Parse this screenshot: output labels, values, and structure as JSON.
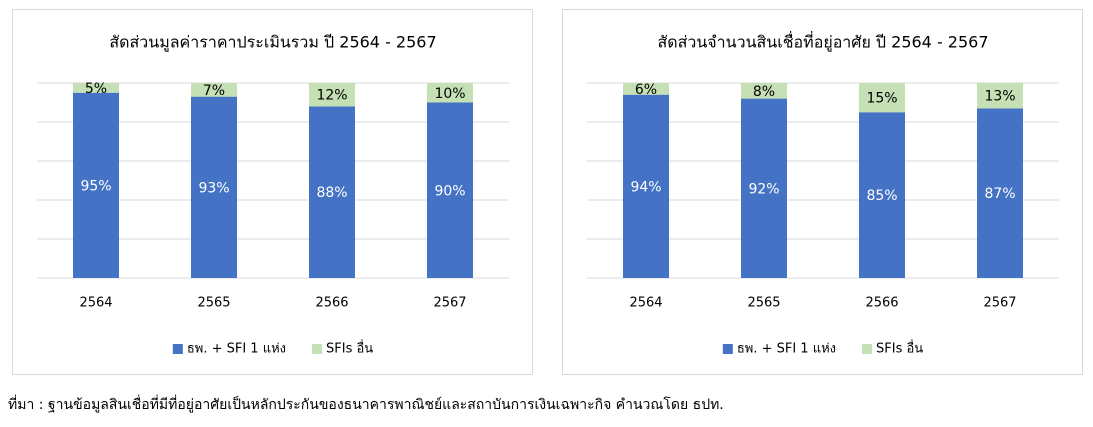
{
  "chart_data": [
    {
      "type": "bar",
      "stacked": true,
      "title": "สัดส่วนมูลค่าราคาประเมินรวม ปี 2564 - 2567",
      "categories": [
        "2564",
        "2565",
        "2566",
        "2567"
      ],
      "series": [
        {
          "name": "ธพ. + SFI 1 แห่ง",
          "color": "#4472c4",
          "values": [
            95,
            93,
            88,
            90
          ],
          "value_labels": [
            "95%",
            "93%",
            "88%",
            "90%"
          ]
        },
        {
          "name": "SFIs อื่น",
          "color": "#c5e0b4",
          "values": [
            5,
            7,
            12,
            10
          ],
          "value_labels": [
            "5%",
            "7%",
            "12%",
            "10%"
          ]
        }
      ],
      "ylim": [
        0,
        100
      ],
      "yticks": [
        0,
        20,
        40,
        60,
        80,
        100
      ],
      "ytick_labels": false,
      "grid": true,
      "legend": "bottom"
    },
    {
      "type": "bar",
      "stacked": true,
      "title": "สัดส่วนจำนวนสินเชื่อที่อยู่อาศัย ปี 2564 - 2567",
      "categories": [
        "2564",
        "2565",
        "2566",
        "2567"
      ],
      "series": [
        {
          "name": "ธพ. + SFI 1 แห่ง",
          "color": "#4472c4",
          "values": [
            94,
            92,
            85,
            87
          ],
          "value_labels": [
            "94%",
            "92%",
            "85%",
            "87%"
          ]
        },
        {
          "name": "SFIs อื่น",
          "color": "#c5e0b4",
          "values": [
            6,
            8,
            15,
            13
          ],
          "value_labels": [
            "6%",
            "8%",
            "15%",
            "13%"
          ]
        }
      ],
      "ylim": [
        0,
        100
      ],
      "yticks": [
        0,
        20,
        40,
        60,
        80,
        100
      ],
      "ytick_labels": false,
      "grid": true,
      "legend": "bottom"
    }
  ],
  "footnote": "ที่มา : ฐานข้อมูลสินเชื่อที่มีที่อยู่อาศัยเป็นหลักประกันของธนาคารพาณิชย์และสถาบันการเงินเฉพาะกิจ คำนวณโดย ธปท."
}
